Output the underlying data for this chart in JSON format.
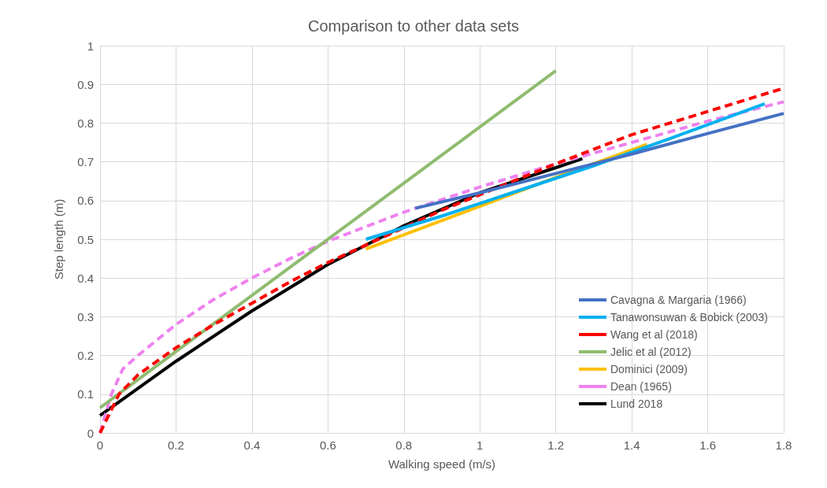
{
  "chart_data": {
    "type": "line",
    "title": "Comparison to other data sets",
    "xlabel": "Walking speed (m/s)",
    "ylabel": "Step length (m)",
    "xlim": [
      0,
      1.8
    ],
    "xticks": [
      0,
      0.2,
      0.4,
      0.6,
      0.8,
      1,
      1.2,
      1.4,
      1.6,
      1.8
    ],
    "ylim": [
      0,
      1
    ],
    "yticks": [
      0,
      0.1,
      0.2,
      0.3,
      0.4,
      0.5,
      0.6,
      0.7,
      0.8,
      0.9,
      1
    ],
    "grid": true,
    "legend": "bottom right",
    "marker": "none",
    "series": [
      {
        "name": "Cavagna & Margaria (1966)",
        "color": "#4472c4",
        "line_style": "solid",
        "x": [
          0.83,
          1.0,
          1.2,
          1.4,
          1.6,
          1.8
        ],
        "values": [
          0.58,
          0.62,
          0.67,
          0.72,
          0.773,
          0.825
        ]
      },
      {
        "name": "Tanawonsuwan & Bobick (2003)",
        "color": "#00b0f0",
        "line_style": "solid",
        "x": [
          0.7,
          0.9,
          1.1,
          1.3,
          1.5,
          1.75
        ],
        "values": [
          0.5,
          0.56,
          0.625,
          0.69,
          0.76,
          0.85
        ]
      },
      {
        "name": "Wang et al (2018)",
        "color": "#ff0000",
        "line_style": "dashed",
        "x": [
          0,
          0.05,
          0.1,
          0.2,
          0.3,
          0.4,
          0.5,
          0.6,
          0.7,
          0.8,
          0.9,
          1.0,
          1.2,
          1.4,
          1.6,
          1.8
        ],
        "values": [
          0,
          0.1,
          0.15,
          0.22,
          0.28,
          0.335,
          0.39,
          0.44,
          0.485,
          0.53,
          0.575,
          0.615,
          0.695,
          0.77,
          0.83,
          0.89
        ]
      },
      {
        "name": "Jelic et al (2012)",
        "color": "#8fbc6f",
        "line_style": "solid",
        "x": [
          0,
          1.2
        ],
        "values": [
          0.065,
          0.935
        ]
      },
      {
        "name": "Dominici (2009)",
        "color": "#ffc000",
        "line_style": "solid",
        "x": [
          0.7,
          1.0,
          1.2,
          1.44
        ],
        "values": [
          0.475,
          0.585,
          0.66,
          0.745
        ]
      },
      {
        "name": "Dean (1965)",
        "color": "#ee82ee",
        "line_style": "dashed",
        "x": [
          0,
          0.03,
          0.06,
          0.1,
          0.2,
          0.3,
          0.4,
          0.5,
          0.6,
          0.8,
          1.0,
          1.2,
          1.4,
          1.6,
          1.8
        ],
        "values": [
          0,
          0.1,
          0.165,
          0.2,
          0.28,
          0.345,
          0.4,
          0.45,
          0.495,
          0.57,
          0.635,
          0.695,
          0.75,
          0.805,
          0.855
        ]
      },
      {
        "name": "Lund 2018",
        "color": "#000000",
        "line_style": "solid",
        "x": [
          0,
          0.2,
          0.4,
          0.6,
          0.8,
          1.0,
          1.2,
          1.27
        ],
        "values": [
          0.045,
          0.185,
          0.315,
          0.435,
          0.535,
          0.62,
          0.685,
          0.708
        ]
      }
    ]
  }
}
